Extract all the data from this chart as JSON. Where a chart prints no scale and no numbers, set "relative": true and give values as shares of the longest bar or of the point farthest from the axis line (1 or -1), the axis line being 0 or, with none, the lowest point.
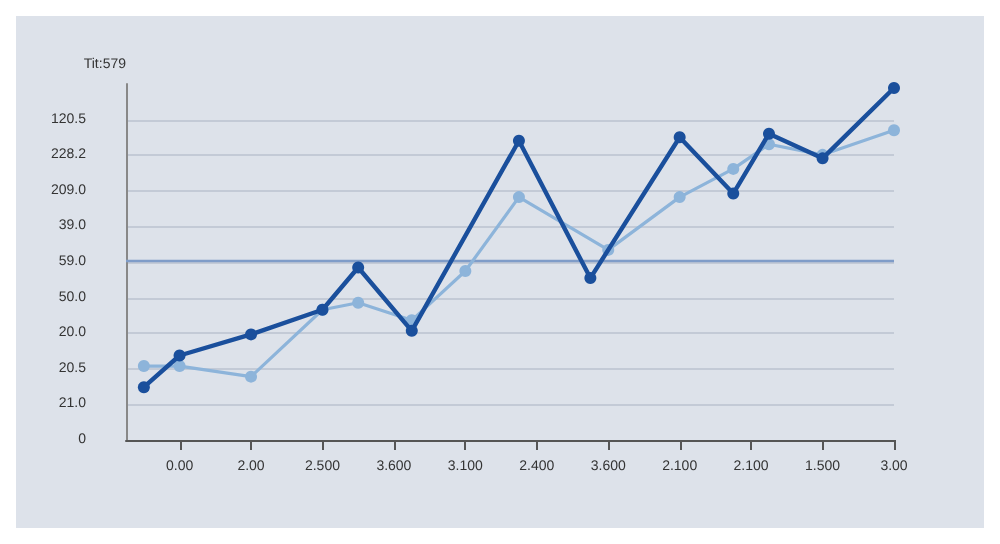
{
  "chart_data": {
    "type": "line",
    "ylabel": "Tit:579",
    "relative": true,
    "categories": [
      null,
      null,
      null,
      "0.00",
      null,
      null,
      null,
      "2.00",
      null,
      null,
      null,
      "2.500",
      null,
      null,
      null,
      "3.600",
      null,
      null,
      null,
      "3.100",
      null,
      null,
      null,
      "2.400",
      null,
      null,
      null,
      "3.600",
      null,
      null,
      null,
      "2.100",
      null,
      null,
      null,
      "2.100",
      null,
      null,
      null,
      "1.500",
      null,
      null,
      null,
      "3.00"
    ],
    "annotations": [
      "0",
      "21.0",
      "20.5",
      "20.0",
      "50.0",
      "59.0",
      "39.0",
      "209.0",
      "228.2",
      "120.5"
    ],
    "grid": "y",
    "marker": "circle",
    "line_style": "solid",
    "ref_lines": [
      {
        "axis": "y",
        "value": 0.51,
        "color": "#7f9cc8"
      }
    ],
    "series": [
      {
        "color": "#1a4f9c",
        "values": [
          null,
          0.15,
          null,
          0.24,
          null,
          null,
          null,
          0.3,
          null,
          null,
          null,
          0.37,
          null,
          0.49,
          null,
          null,
          0.31,
          null,
          null,
          null,
          null,
          null,
          0.85,
          null,
          null,
          null,
          0.46,
          null,
          null,
          null,
          null,
          0.86,
          null,
          null,
          0.7,
          null,
          0.87,
          null,
          null,
          0.8,
          null,
          null,
          null,
          1
        ]
      },
      {
        "color": "#8db4da",
        "values": [
          null,
          0.21,
          null,
          0.21,
          null,
          null,
          null,
          0.18,
          null,
          null,
          null,
          0.37,
          null,
          0.39,
          null,
          null,
          0.34,
          null,
          null,
          0.48,
          null,
          null,
          0.69,
          null,
          null,
          null,
          null,
          0.54,
          null,
          null,
          null,
          0.69,
          null,
          null,
          0.77,
          null,
          0.84,
          null,
          null,
          0.81,
          null,
          null,
          null,
          0.88
        ]
      }
    ]
  }
}
